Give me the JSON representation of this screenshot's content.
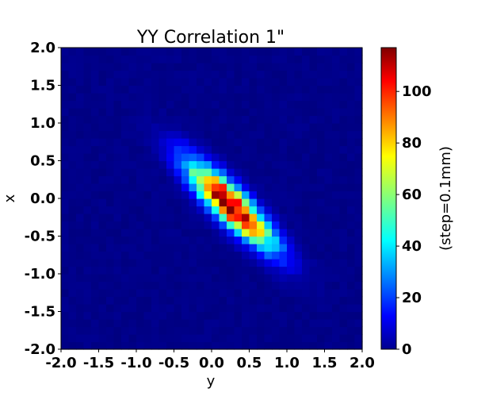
{
  "chart_data": {
    "type": "heatmap",
    "title": "YY Correlation 1\"",
    "xlabel": "y",
    "ylabel": "x",
    "colorbar_label": "(step=0.1mm)",
    "colormap": "jet",
    "xlim": [
      -2.0,
      2.0
    ],
    "ylim": [
      -2.0,
      2.0
    ],
    "clim": [
      0,
      117
    ],
    "bins": 40,
    "x_ticks": [
      "-2.0",
      "-1.5",
      "-1.0",
      "-0.5",
      "0.0",
      "0.5",
      "1.0",
      "1.5",
      "2.0"
    ],
    "y_ticks": [
      "2.0",
      "1.5",
      "1.0",
      "0.5",
      "0.0",
      "-0.5",
      "-1.0",
      "-1.5",
      "-2.0"
    ],
    "colorbar_ticks": [
      "0",
      "20",
      "40",
      "60",
      "80",
      "100"
    ],
    "distribution": {
      "center": [
        0.25,
        -0.08
      ],
      "major_axis_direction": [
        0.707,
        -0.707
      ],
      "sigma_major": 0.52,
      "sigma_minor": 0.14,
      "peak_count": 117,
      "background_count": 2
    },
    "grid": false,
    "legend": "none"
  }
}
